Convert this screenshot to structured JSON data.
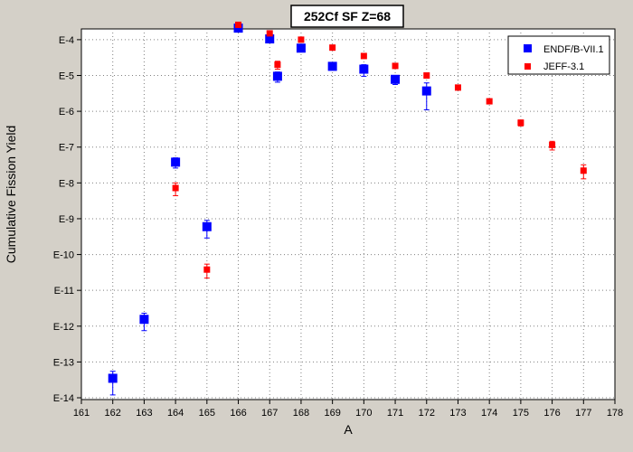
{
  "chart_data": {
    "type": "scatter",
    "title": "252Cf SF Z=68",
    "xlabel": "A",
    "ylabel": "Cumulative Fission Yield",
    "xlim": [
      161,
      178
    ],
    "ylim_log10": [
      -14.05,
      -3.7
    ],
    "y_scale": "log",
    "grid": true,
    "legend_position": "top-right",
    "x_ticks": [
      "161",
      "162",
      "163",
      "164",
      "165",
      "166",
      "167",
      "168",
      "169",
      "170",
      "171",
      "172",
      "173",
      "174",
      "175",
      "176",
      "177",
      "178"
    ],
    "y_ticks": [
      {
        "label": "E-4",
        "exp": -4
      },
      {
        "label": "E-5",
        "exp": -5
      },
      {
        "label": "E-6",
        "exp": -6
      },
      {
        "label": "E-7",
        "exp": -7
      },
      {
        "label": "E-8",
        "exp": -8
      },
      {
        "label": "E-9",
        "exp": -9
      },
      {
        "label": "E-10",
        "exp": -10
      },
      {
        "label": "E-11",
        "exp": -11
      },
      {
        "label": "E-12",
        "exp": -12
      },
      {
        "label": "E-13",
        "exp": -13
      },
      {
        "label": "E-14",
        "exp": -14
      }
    ],
    "series": [
      {
        "name": "ENDF/B-VII.1",
        "color": "#0000ff",
        "marker": "square-large",
        "points": [
          {
            "x": 162,
            "y": 3.5e-14,
            "err_lo": 1.2e-14,
            "err_hi": 5.5e-14
          },
          {
            "x": 163,
            "y": 1.55e-12,
            "err_lo": 7.5e-13,
            "err_hi": 2.3e-12
          },
          {
            "x": 164,
            "y": 3.8e-08,
            "err_lo": 2.6e-08,
            "err_hi": 5e-08
          },
          {
            "x": 165,
            "y": 6e-10,
            "err_lo": 2.9e-10,
            "err_hi": 9e-10
          },
          {
            "x": 166,
            "y": 0.00021,
            "err_lo": 0.000195,
            "err_hi": 0.000225
          },
          {
            "x": 167,
            "y": 0.000105,
            "err_lo": 9.9e-05,
            "err_hi": 0.00011
          },
          {
            "x": 167.25,
            "y": 9.5e-06,
            "err_lo": 6.5e-06,
            "err_hi": 1.25e-05
          },
          {
            "x": 168,
            "y": 5.8e-05,
            "err_lo": 5.5e-05,
            "err_hi": 6.1e-05
          },
          {
            "x": 169,
            "y": 1.8e-05,
            "err_lo": 1.7e-05,
            "err_hi": 1.9e-05
          },
          {
            "x": 170,
            "y": 1.5e-05,
            "err_lo": 9.5e-06,
            "err_hi": 2e-05
          },
          {
            "x": 171,
            "y": 7.8e-06,
            "err_lo": 5.6e-06,
            "err_hi": 1e-05
          },
          {
            "x": 172,
            "y": 3.7e-06,
            "err_lo": 1.1e-06,
            "err_hi": 6.2e-06
          }
        ]
      },
      {
        "name": "JEFF-3.1",
        "color": "#ff0000",
        "marker": "square-small",
        "points": [
          {
            "x": 164,
            "y": 7.2e-09,
            "err_lo": 4.4e-09,
            "err_hi": 1e-08
          },
          {
            "x": 165,
            "y": 3.8e-11,
            "err_lo": 2.2e-11,
            "err_hi": 5.4e-11
          },
          {
            "x": 166,
            "y": 0.00026,
            "err_lo": 0.00024,
            "err_hi": 0.00028
          },
          {
            "x": 167,
            "y": 0.00015,
            "err_lo": 0.00013,
            "err_hi": 0.00017
          },
          {
            "x": 167.25,
            "y": 2e-05,
            "err_lo": 1.5e-05,
            "err_hi": 2.5e-05
          },
          {
            "x": 168,
            "y": 0.0001,
            "err_lo": 9.5e-05,
            "err_hi": 0.000105
          },
          {
            "x": 169,
            "y": 6e-05,
            "err_lo": 5.7e-05,
            "err_hi": 6.3e-05
          },
          {
            "x": 170,
            "y": 3.5e-05,
            "err_lo": 3e-05,
            "err_hi": 4e-05
          },
          {
            "x": 171,
            "y": 1.85e-05,
            "err_lo": 1.6e-05,
            "err_hi": 2.1e-05
          },
          {
            "x": 172,
            "y": 1e-05,
            "err_lo": 9.5e-06,
            "err_hi": 1.05e-05
          },
          {
            "x": 173,
            "y": 4.6e-06,
            "err_lo": 4.3e-06,
            "err_hi": 4.9e-06
          },
          {
            "x": 174,
            "y": 1.9e-06,
            "err_lo": 1.8e-06,
            "err_hi": 2e-06
          },
          {
            "x": 175,
            "y": 4.8e-07,
            "err_lo": 3.9e-07,
            "err_hi": 5.7e-07
          },
          {
            "x": 176,
            "y": 1.15e-07,
            "err_lo": 8.3e-08,
            "err_hi": 1.45e-07
          },
          {
            "x": 177,
            "y": 2.2e-08,
            "err_lo": 1.3e-08,
            "err_hi": 3.2e-08
          }
        ]
      }
    ]
  }
}
